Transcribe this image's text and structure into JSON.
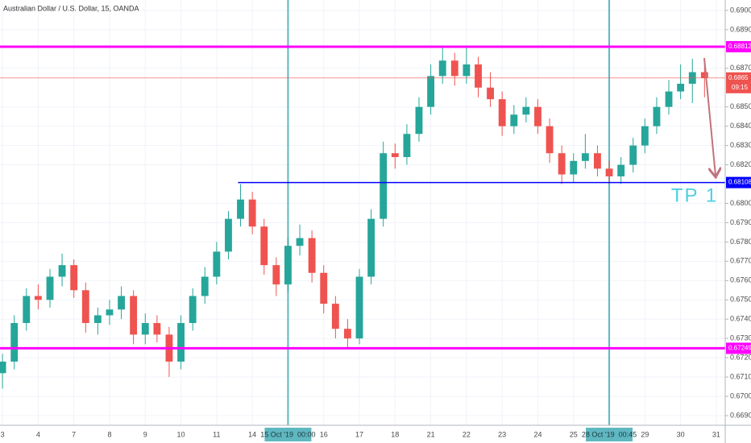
{
  "chart_data": {
    "type": "candlestick",
    "title": "Australian Dollar / U.S. Dollar, 15, OANDA",
    "up_color": "#26a69a",
    "down_color": "#ef5350",
    "grid": true,
    "xlim": [
      -0.07,
      20.25
    ],
    "ylim": [
      0.6685,
      0.69054
    ],
    "xticks": [
      {
        "value": 0,
        "label": "3"
      },
      {
        "value": 1,
        "label": "4"
      },
      {
        "value": 2,
        "label": "7"
      },
      {
        "value": 3,
        "label": "8"
      },
      {
        "value": 4,
        "label": "9"
      },
      {
        "value": 5,
        "label": "10"
      },
      {
        "value": 6,
        "label": "11"
      },
      {
        "value": 7,
        "label": "14"
      },
      {
        "value": 8,
        "label": "15 Oct '19  00:00"
      },
      {
        "value": 9,
        "label": "16"
      },
      {
        "value": 10,
        "label": "17"
      },
      {
        "value": 11,
        "label": "18"
      },
      {
        "value": 12,
        "label": "21"
      },
      {
        "value": 13,
        "label": "22"
      },
      {
        "value": 14,
        "label": "23"
      },
      {
        "value": 15,
        "label": "24"
      },
      {
        "value": 16,
        "label": "25"
      },
      {
        "value": 17,
        "label": "28 Oct '19  00:45"
      },
      {
        "value": 18,
        "label": "29"
      },
      {
        "value": 19,
        "label": "30"
      },
      {
        "value": 20,
        "label": "31"
      }
    ],
    "yticks": [
      {
        "value": 0.69,
        "label": "0.69000"
      },
      {
        "value": 0.689,
        "label": "0.68900"
      },
      {
        "value": 0.687,
        "label": "0.68700"
      },
      {
        "value": 0.685,
        "label": "0.68500"
      },
      {
        "value": 0.684,
        "label": "0.68400"
      },
      {
        "value": 0.683,
        "label": "0.68300"
      },
      {
        "value": 0.682,
        "label": "0.68200"
      },
      {
        "value": 0.68,
        "label": "0.68000"
      },
      {
        "value": 0.679,
        "label": "0.67900"
      },
      {
        "value": 0.678,
        "label": "0.67800"
      },
      {
        "value": 0.677,
        "label": "0.67700"
      },
      {
        "value": 0.676,
        "label": "0.67600"
      },
      {
        "value": 0.675,
        "label": "0.67500"
      },
      {
        "value": 0.674,
        "label": "0.67400"
      },
      {
        "value": 0.673,
        "label": "0.67300"
      },
      {
        "value": 0.672,
        "label": "0.67200"
      },
      {
        "value": 0.671,
        "label": "0.67100"
      },
      {
        "value": 0.67,
        "label": "0.67000"
      },
      {
        "value": 0.669,
        "label": "0.66900"
      }
    ],
    "vlines": [
      8,
      17
    ],
    "levels": [
      {
        "value": 0.68812,
        "color": "#ff00ff"
      },
      {
        "value": 0.67249,
        "color": "#ff00ff"
      },
      {
        "value": 0.68108,
        "color": "#0000ff",
        "from_x": 6.6
      }
    ],
    "last_price": 0.6865,
    "countdown": "09:15",
    "annotation": "TP 1",
    "x": [
      0,
      0.33,
      0.67,
      1,
      1.33,
      1.67,
      2,
      2.33,
      2.67,
      3,
      3.33,
      3.67,
      4,
      4.33,
      4.67,
      5,
      5.33,
      5.67,
      6,
      6.33,
      6.67,
      7,
      7.33,
      7.67,
      8,
      8.33,
      8.67,
      9,
      9.33,
      9.67,
      10,
      10.33,
      10.67,
      11,
      11.33,
      11.67,
      12,
      12.33,
      12.67,
      13,
      13.33,
      13.67,
      14,
      14.33,
      14.67,
      15,
      15.33,
      15.67,
      16,
      16.33,
      16.67,
      17,
      17.33,
      17.67,
      18,
      18.33,
      18.67,
      19,
      19.33,
      19.67
    ],
    "open": [
      0.6712,
      0.6718,
      0.6738,
      0.6752,
      0.675,
      0.6762,
      0.6768,
      0.6755,
      0.6738,
      0.6742,
      0.6745,
      0.6752,
      0.6732,
      0.6738,
      0.6732,
      0.6718,
      0.6738,
      0.6752,
      0.6762,
      0.6775,
      0.6792,
      0.6802,
      0.6788,
      0.6768,
      0.6758,
      0.6778,
      0.6782,
      0.6764,
      0.6748,
      0.6735,
      0.673,
      0.6762,
      0.6792,
      0.6826,
      0.6824,
      0.6836,
      0.685,
      0.6866,
      0.6874,
      0.6866,
      0.6872,
      0.686,
      0.6854,
      0.684,
      0.6846,
      0.685,
      0.684,
      0.6826,
      0.6815,
      0.6822,
      0.6826,
      0.6818,
      0.6814,
      0.682,
      0.683,
      0.684,
      0.685,
      0.6858,
      0.6862,
      0.6868
    ],
    "high": [
      0.6722,
      0.6742,
      0.6756,
      0.6758,
      0.6766,
      0.6774,
      0.6771,
      0.6759,
      0.6746,
      0.675,
      0.6757,
      0.6755,
      0.6743,
      0.6742,
      0.6736,
      0.6742,
      0.6756,
      0.6767,
      0.678,
      0.6796,
      0.681,
      0.6806,
      0.6792,
      0.6772,
      0.6782,
      0.6789,
      0.6786,
      0.6768,
      0.6752,
      0.674,
      0.6766,
      0.6797,
      0.6832,
      0.6831,
      0.6841,
      0.6855,
      0.6872,
      0.6881,
      0.6878,
      0.6881,
      0.6876,
      0.6868,
      0.6858,
      0.6851,
      0.6855,
      0.6854,
      0.6844,
      0.683,
      0.6826,
      0.6836,
      0.683,
      0.6822,
      0.6824,
      0.6834,
      0.6844,
      0.6855,
      0.6864,
      0.6872,
      0.6875,
      0.6874
    ],
    "low": [
      0.6704,
      0.6714,
      0.6734,
      0.6745,
      0.6746,
      0.6757,
      0.6751,
      0.6733,
      0.6732,
      0.6737,
      0.674,
      0.6727,
      0.6727,
      0.6728,
      0.671,
      0.6714,
      0.6734,
      0.6748,
      0.6758,
      0.6771,
      0.6788,
      0.6784,
      0.6763,
      0.6752,
      0.6754,
      0.6773,
      0.6759,
      0.6743,
      0.673,
      0.6725,
      0.6727,
      0.6758,
      0.6788,
      0.6818,
      0.682,
      0.6832,
      0.6846,
      0.6862,
      0.6861,
      0.6862,
      0.6855,
      0.685,
      0.6835,
      0.6836,
      0.6842,
      0.6836,
      0.6821,
      0.681,
      0.6811,
      0.6818,
      0.6814,
      0.681,
      0.681,
      0.6816,
      0.6826,
      0.6836,
      0.6846,
      0.6854,
      0.6852,
      0.6855
    ],
    "close": [
      0.6718,
      0.6738,
      0.6752,
      0.675,
      0.6762,
      0.6768,
      0.6755,
      0.6738,
      0.6742,
      0.6745,
      0.6752,
      0.6732,
      0.6738,
      0.6732,
      0.6718,
      0.6738,
      0.6752,
      0.6762,
      0.6775,
      0.6792,
      0.6802,
      0.6788,
      0.6768,
      0.6758,
      0.6778,
      0.6782,
      0.6764,
      0.6748,
      0.6735,
      0.673,
      0.6762,
      0.6792,
      0.6826,
      0.6824,
      0.6836,
      0.685,
      0.6866,
      0.6874,
      0.6866,
      0.6872,
      0.686,
      0.6854,
      0.684,
      0.6846,
      0.685,
      0.684,
      0.6826,
      0.6815,
      0.6822,
      0.6826,
      0.6818,
      0.6814,
      0.682,
      0.683,
      0.684,
      0.685,
      0.6858,
      0.6862,
      0.6868,
      0.6865
    ]
  }
}
